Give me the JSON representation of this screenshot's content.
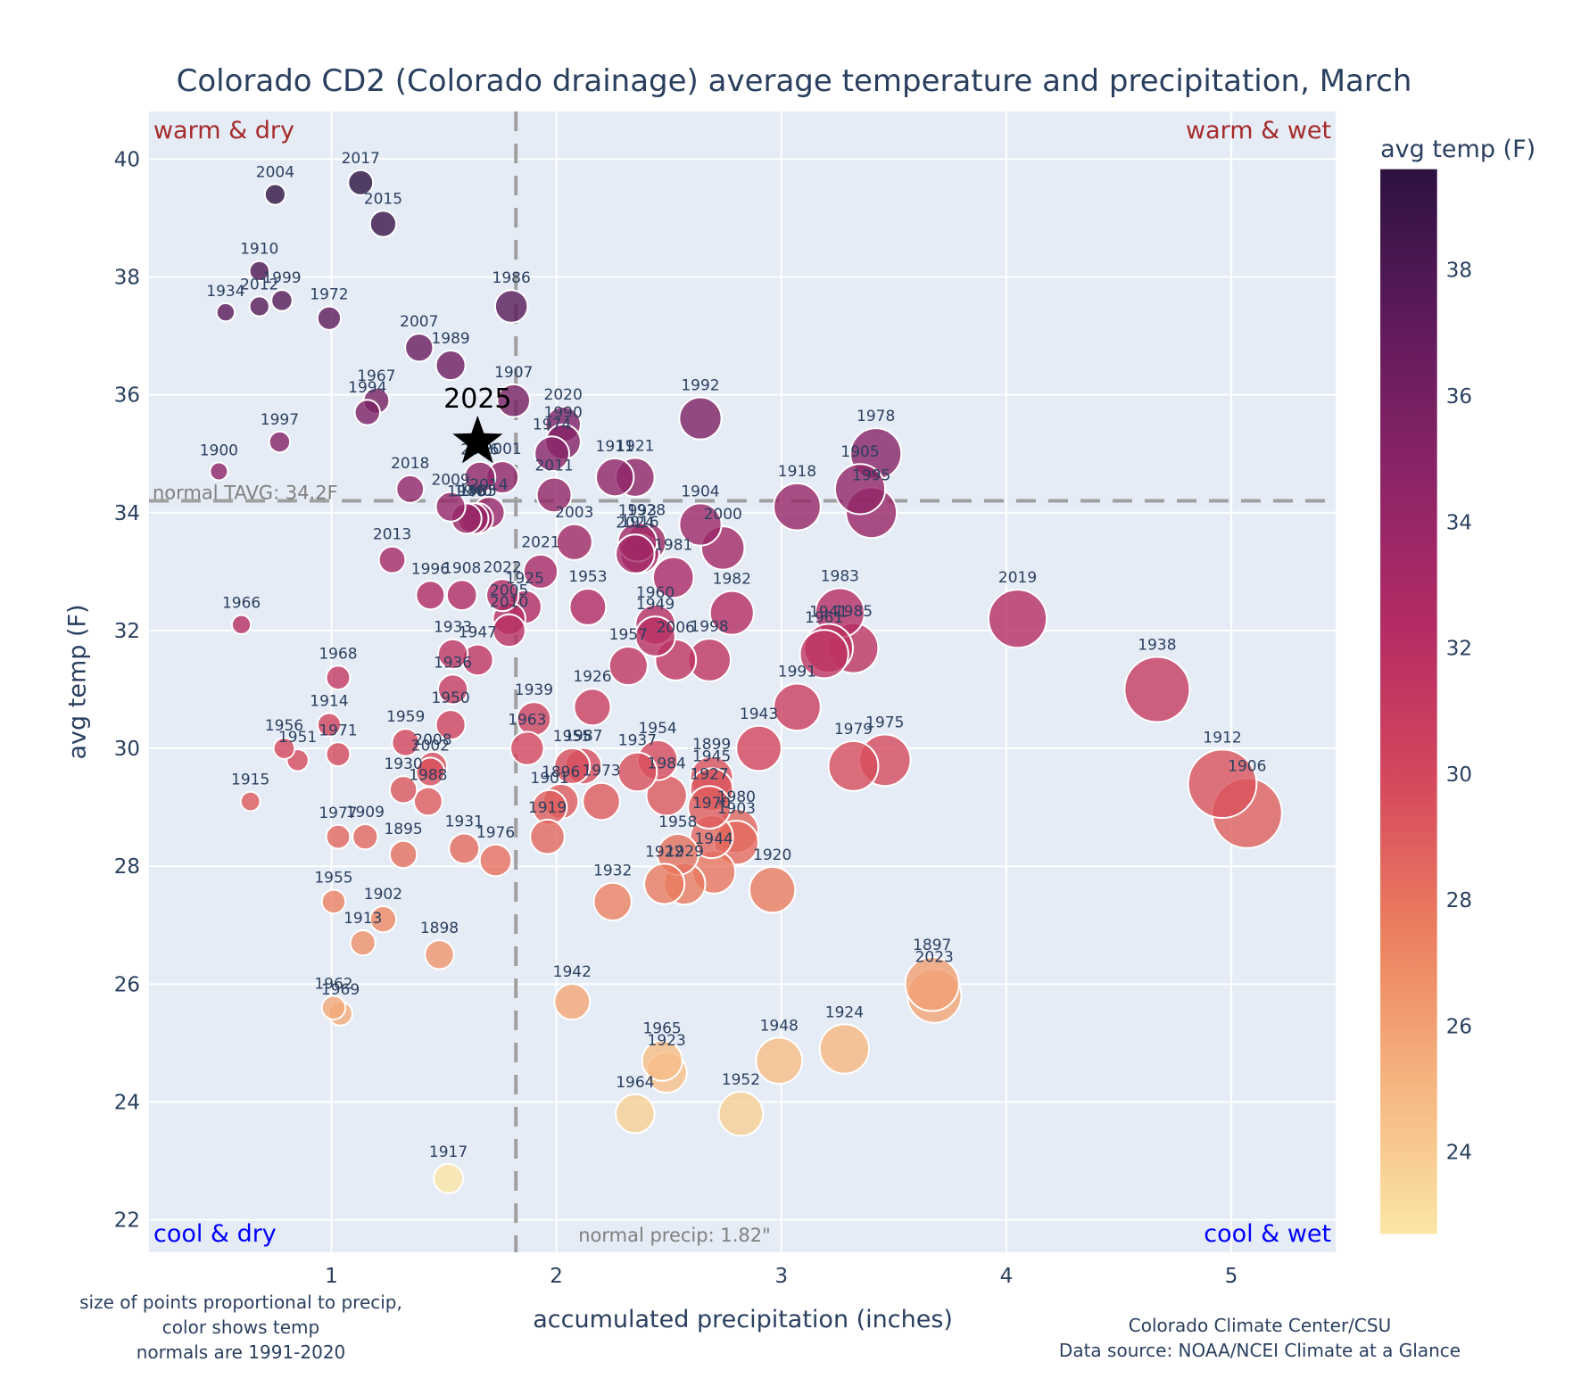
{
  "chart_data": {
    "type": "scatter",
    "title": "Colorado CD2 (Colorado drainage) average temperature and precipitation, March",
    "xlabel": "accumulated precipitation (inches)",
    "ylabel": "avg temp (F)",
    "xlim": [
      0.2,
      5.47
    ],
    "ylim": [
      21.5,
      40.8
    ],
    "xticks": [
      1,
      2,
      3,
      4,
      5
    ],
    "yticks": [
      22,
      24,
      26,
      28,
      30,
      32,
      34,
      36,
      38,
      40
    ],
    "grid": true,
    "colorbar": {
      "title": "avg temp (F)",
      "range": [
        22.7,
        39.6
      ],
      "ticks": [
        24,
        26,
        28,
        30,
        32,
        34,
        36,
        38
      ],
      "colorscale": [
        "#fbe6a6",
        "#f5b47f",
        "#eb7e5e",
        "#d5475d",
        "#b32b64",
        "#8b2467",
        "#5e1a5c",
        "#2c1240"
      ]
    },
    "reference_lines": {
      "normal_temp": 34.2,
      "normal_temp_label": "normal TAVG: 34.2F",
      "normal_precip": 1.82,
      "normal_precip_label": "normal precip: 1.82\""
    },
    "quadrant_labels": {
      "top_left": "warm & dry",
      "top_right": "warm & wet",
      "bottom_left": "cool & dry",
      "bottom_right": "cool & wet"
    },
    "current": {
      "label": "2025",
      "precip": 1.65,
      "temp": 35.2,
      "marker": "star"
    },
    "points": [
      {
        "year": "2004",
        "precip": 0.75,
        "temp": 39.4
      },
      {
        "year": "2017",
        "precip": 1.13,
        "temp": 39.6
      },
      {
        "year": "2015",
        "precip": 1.23,
        "temp": 38.9
      },
      {
        "year": "1910",
        "precip": 0.68,
        "temp": 38.1
      },
      {
        "year": "1934",
        "precip": 0.53,
        "temp": 37.4
      },
      {
        "year": "2012",
        "precip": 0.68,
        "temp": 37.5
      },
      {
        "year": "1999",
        "precip": 0.78,
        "temp": 37.6
      },
      {
        "year": "1972",
        "precip": 0.99,
        "temp": 37.3
      },
      {
        "year": "1986",
        "precip": 1.8,
        "temp": 37.5
      },
      {
        "year": "2007",
        "precip": 1.39,
        "temp": 36.8
      },
      {
        "year": "1989",
        "precip": 1.53,
        "temp": 36.5
      },
      {
        "year": "1967",
        "precip": 1.2,
        "temp": 35.9
      },
      {
        "year": "1994",
        "precip": 1.16,
        "temp": 35.7
      },
      {
        "year": "1907",
        "precip": 1.81,
        "temp": 35.9
      },
      {
        "year": "1997",
        "precip": 0.77,
        "temp": 35.2
      },
      {
        "year": "1900",
        "precip": 0.5,
        "temp": 34.7
      },
      {
        "year": "2020",
        "precip": 2.03,
        "temp": 35.5
      },
      {
        "year": "1990",
        "precip": 2.03,
        "temp": 35.2
      },
      {
        "year": "1974",
        "precip": 1.98,
        "temp": 35.0
      },
      {
        "year": "2001",
        "precip": 1.76,
        "temp": 34.6
      },
      {
        "year": "2006",
        "precip": 1.66,
        "temp": 34.6
      },
      {
        "year": "2011",
        "precip": 1.99,
        "temp": 34.3
      },
      {
        "year": "1911",
        "precip": 2.26,
        "temp": 34.6
      },
      {
        "year": "1921",
        "precip": 2.35,
        "temp": 34.6
      },
      {
        "year": "1992",
        "precip": 2.64,
        "temp": 35.6
      },
      {
        "year": "1978",
        "precip": 3.42,
        "temp": 35.0
      },
      {
        "year": "1905",
        "precip": 3.35,
        "temp": 34.4
      },
      {
        "year": "1995",
        "precip": 3.4,
        "temp": 34.0
      },
      {
        "year": "1918",
        "precip": 3.07,
        "temp": 34.1
      },
      {
        "year": "2018",
        "precip": 1.35,
        "temp": 34.4
      },
      {
        "year": "2009",
        "precip": 1.53,
        "temp": 34.1
      },
      {
        "year": "2014",
        "precip": 1.7,
        "temp": 34.0
      },
      {
        "year": "1946",
        "precip": 1.6,
        "temp": 33.9
      },
      {
        "year": "1940",
        "precip": 1.63,
        "temp": 33.9
      },
      {
        "year": "1965b",
        "precip": 1.65,
        "temp": 33.9
      },
      {
        "year": "2003",
        "precip": 2.08,
        "temp": 33.5
      },
      {
        "year": "1993",
        "precip": 2.36,
        "temp": 33.5
      },
      {
        "year": "1928",
        "precip": 2.4,
        "temp": 33.5
      },
      {
        "year": "1916",
        "precip": 2.37,
        "temp": 33.3
      },
      {
        "year": "1904",
        "precip": 2.64,
        "temp": 33.8
      },
      {
        "year": "2000",
        "precip": 2.74,
        "temp": 33.4
      },
      {
        "year": "2024",
        "precip": 2.35,
        "temp": 33.3
      },
      {
        "year": "2013",
        "precip": 1.27,
        "temp": 33.2
      },
      {
        "year": "2021",
        "precip": 1.93,
        "temp": 33.0
      },
      {
        "year": "1996",
        "precip": 1.44,
        "temp": 32.6
      },
      {
        "year": "1908",
        "precip": 1.58,
        "temp": 32.6
      },
      {
        "year": "2022",
        "precip": 1.76,
        "temp": 32.6
      },
      {
        "year": "1925",
        "precip": 1.86,
        "temp": 32.4
      },
      {
        "year": "2005",
        "precip": 1.79,
        "temp": 32.2
      },
      {
        "year": "2010",
        "precip": 1.79,
        "temp": 32.0
      },
      {
        "year": "1953",
        "precip": 2.14,
        "temp": 32.4
      },
      {
        "year": "1981",
        "precip": 2.52,
        "temp": 32.9
      },
      {
        "year": "1960",
        "precip": 2.44,
        "temp": 32.1
      },
      {
        "year": "1949",
        "precip": 2.44,
        "temp": 31.9
      },
      {
        "year": "1982",
        "precip": 2.78,
        "temp": 32.3
      },
      {
        "year": "2006",
        "precip": 2.53,
        "temp": 31.5
      },
      {
        "year": "1998",
        "precip": 2.68,
        "temp": 31.5
      },
      {
        "year": "1957",
        "precip": 2.32,
        "temp": 31.4
      },
      {
        "year": "1983",
        "precip": 3.26,
        "temp": 32.3
      },
      {
        "year": "1941",
        "precip": 3.21,
        "temp": 31.7
      },
      {
        "year": "1961",
        "precip": 3.19,
        "temp": 31.6
      },
      {
        "year": "1985",
        "precip": 3.32,
        "temp": 31.7
      },
      {
        "year": "2019",
        "precip": 4.05,
        "temp": 32.2
      },
      {
        "year": "1966",
        "precip": 0.6,
        "temp": 32.1
      },
      {
        "year": "1933",
        "precip": 1.54,
        "temp": 31.6
      },
      {
        "year": "1947",
        "precip": 1.65,
        "temp": 31.5
      },
      {
        "year": "1936",
        "precip": 1.54,
        "temp": 31.0
      },
      {
        "year": "1926",
        "precip": 2.16,
        "temp": 30.7
      },
      {
        "year": "1991",
        "precip": 3.07,
        "temp": 30.7
      },
      {
        "year": "1938",
        "precip": 4.67,
        "temp": 31.0
      },
      {
        "year": "1968",
        "precip": 1.03,
        "temp": 31.2
      },
      {
        "year": "1914",
        "precip": 0.99,
        "temp": 30.4
      },
      {
        "year": "1950",
        "precip": 1.53,
        "temp": 30.4
      },
      {
        "year": "1939",
        "precip": 1.9,
        "temp": 30.5
      },
      {
        "year": "1963",
        "precip": 1.87,
        "temp": 30.0
      },
      {
        "year": "1959",
        "precip": 1.33,
        "temp": 30.1
      },
      {
        "year": "1956",
        "precip": 0.79,
        "temp": 30.0
      },
      {
        "year": "1951",
        "precip": 0.85,
        "temp": 29.8
      },
      {
        "year": "1971",
        "precip": 1.03,
        "temp": 29.9
      },
      {
        "year": "2008",
        "precip": 1.45,
        "temp": 29.7
      },
      {
        "year": "2002",
        "precip": 1.44,
        "temp": 29.6
      },
      {
        "year": "1955b",
        "precip": 2.07,
        "temp": 29.7
      },
      {
        "year": "1987",
        "precip": 2.12,
        "temp": 29.7
      },
      {
        "year": "1954",
        "precip": 2.45,
        "temp": 29.8
      },
      {
        "year": "1937",
        "precip": 2.36,
        "temp": 29.6
      },
      {
        "year": "1943",
        "precip": 2.9,
        "temp": 30.0
      },
      {
        "year": "1979",
        "precip": 3.32,
        "temp": 29.7
      },
      {
        "year": "1975",
        "precip": 3.46,
        "temp": 29.8
      },
      {
        "year": "1912",
        "precip": 4.96,
        "temp": 29.4
      },
      {
        "year": "1906",
        "precip": 5.07,
        "temp": 28.9
      },
      {
        "year": "1899",
        "precip": 2.69,
        "temp": 29.5
      },
      {
        "year": "1945",
        "precip": 2.69,
        "temp": 29.3
      },
      {
        "year": "1984",
        "precip": 2.49,
        "temp": 29.2
      },
      {
        "year": "1927",
        "precip": 2.68,
        "temp": 29.0
      },
      {
        "year": "1970",
        "precip": 2.69,
        "temp": 28.5
      },
      {
        "year": "1980",
        "precip": 2.8,
        "temp": 28.6
      },
      {
        "year": "1903",
        "precip": 2.8,
        "temp": 28.4
      },
      {
        "year": "1930",
        "precip": 1.32,
        "temp": 29.3
      },
      {
        "year": "1988",
        "precip": 1.43,
        "temp": 29.1
      },
      {
        "year": "1896",
        "precip": 2.02,
        "temp": 29.1
      },
      {
        "year": "1901",
        "precip": 1.97,
        "temp": 29.0
      },
      {
        "year": "1973",
        "precip": 2.2,
        "temp": 29.1
      },
      {
        "year": "1919",
        "precip": 1.96,
        "temp": 28.5
      },
      {
        "year": "1915",
        "precip": 0.64,
        "temp": 29.1
      },
      {
        "year": "1977",
        "precip": 1.03,
        "temp": 28.5
      },
      {
        "year": "1909",
        "precip": 1.15,
        "temp": 28.5
      },
      {
        "year": "1895",
        "precip": 1.32,
        "temp": 28.2
      },
      {
        "year": "1931",
        "precip": 1.59,
        "temp": 28.3
      },
      {
        "year": "1976",
        "precip": 1.73,
        "temp": 28.1
      },
      {
        "year": "1958",
        "precip": 2.54,
        "temp": 28.2
      },
      {
        "year": "1944",
        "precip": 2.7,
        "temp": 27.9
      },
      {
        "year": "1922",
        "precip": 2.48,
        "temp": 27.7
      },
      {
        "year": "1929",
        "precip": 2.57,
        "temp": 27.7
      },
      {
        "year": "1932",
        "precip": 2.25,
        "temp": 27.4
      },
      {
        "year": "1920",
        "precip": 2.96,
        "temp": 27.6
      },
      {
        "year": "1955",
        "precip": 1.01,
        "temp": 27.4
      },
      {
        "year": "1902",
        "precip": 1.23,
        "temp": 27.1
      },
      {
        "year": "1913",
        "precip": 1.14,
        "temp": 26.7
      },
      {
        "year": "1898",
        "precip": 1.48,
        "temp": 26.5
      },
      {
        "year": "1897",
        "precip": 3.67,
        "temp": 26.0
      },
      {
        "year": "2023",
        "precip": 3.68,
        "temp": 25.8
      },
      {
        "year": "1942",
        "precip": 2.07,
        "temp": 25.7
      },
      {
        "year": "1962",
        "precip": 1.01,
        "temp": 25.6
      },
      {
        "year": "1969",
        "precip": 1.04,
        "temp": 25.5
      },
      {
        "year": "1965",
        "precip": 2.47,
        "temp": 24.7
      },
      {
        "year": "1923",
        "precip": 2.49,
        "temp": 24.5
      },
      {
        "year": "1948",
        "precip": 2.99,
        "temp": 24.7
      },
      {
        "year": "1924",
        "precip": 3.28,
        "temp": 24.9
      },
      {
        "year": "1964",
        "precip": 2.35,
        "temp": 23.8
      },
      {
        "year": "1952",
        "precip": 2.82,
        "temp": 23.8
      },
      {
        "year": "1917",
        "precip": 1.52,
        "temp": 22.7
      }
    ],
    "annotations": {
      "left_note": [
        "size of points proportional to precip,",
        "color shows temp",
        "normals are 1991-2020"
      ],
      "right_note": [
        "Colorado Climate Center/CSU",
        "Data source: NOAA/NCEI Climate at a Glance"
      ]
    }
  }
}
